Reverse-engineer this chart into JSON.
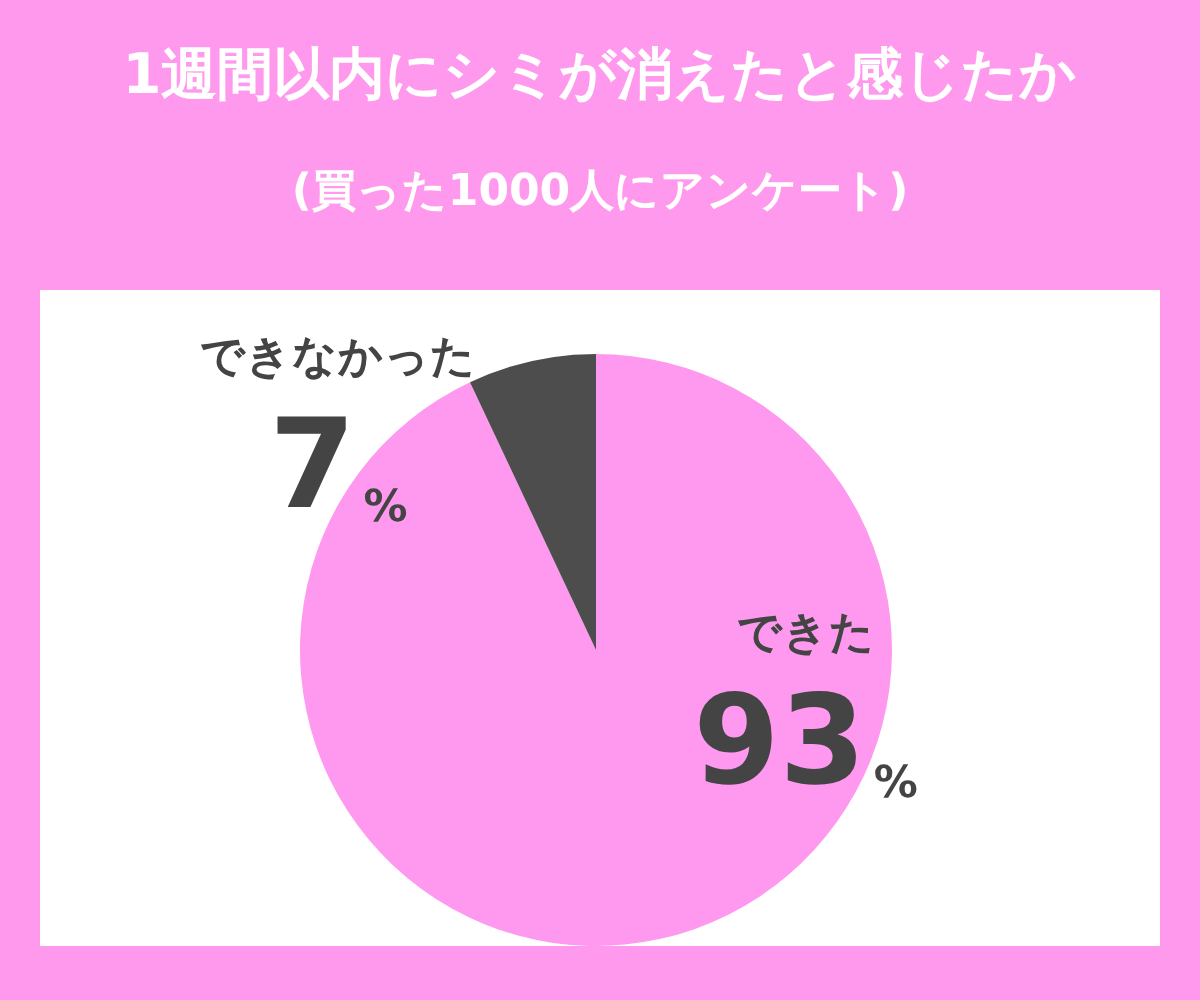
{
  "chart_data": {
    "type": "pie",
    "title": "1週間以内にシミが消えたと感じたか",
    "subtitle": "(買った1000人にアンケート)",
    "categories": [
      "できた",
      "できなかった"
    ],
    "values": [
      93,
      7
    ],
    "colors": [
      "#ff99f0",
      "#4d4d4d"
    ],
    "value_labels": [
      "93%",
      "7%"
    ],
    "legend": false
  }
}
